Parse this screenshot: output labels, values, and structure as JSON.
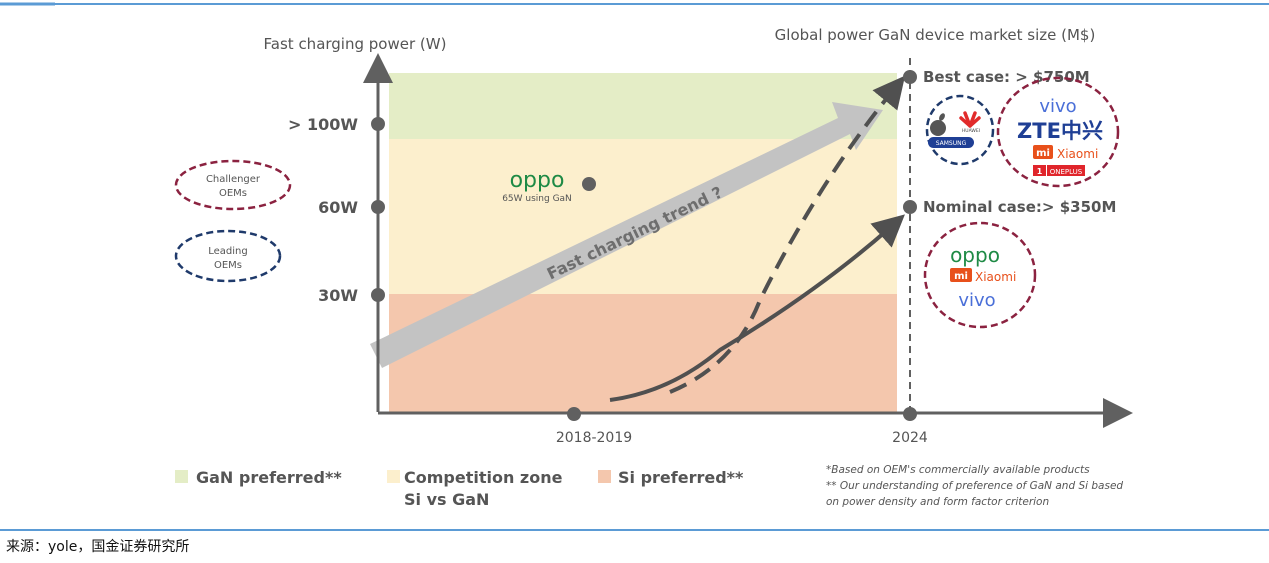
{
  "chart_data": {
    "type": "area",
    "title": "",
    "y_axis_title": "Fast charging power (W)",
    "right_axis_title": "Global power GaN device market size (M$)",
    "y_ticks": [
      "> 100W",
      "60W",
      "30W"
    ],
    "x_ticks": [
      "2018-2019",
      "2024"
    ],
    "zones": [
      {
        "name": "GaN preferred**",
        "from": "> 100W",
        "color": "#e4edc6"
      },
      {
        "name": "Competition zone Si vs GaN",
        "from": "30W",
        "to": "> 100W",
        "color": "#fcefcd"
      },
      {
        "name": "Si preferred**",
        "to": "30W",
        "color": "#f4c7ad"
      }
    ],
    "trend_label": "Fast charging trend ?",
    "oppo_point": {
      "brand": "OPPO",
      "label": "65W using GaN",
      "power_w": 65
    },
    "scenarios": [
      {
        "name": "Best case",
        "label": "Best case: > $750M",
        "value_musd": 750,
        "line": "dashed"
      },
      {
        "name": "Nominal case",
        "label": "Nominal case:> $350M",
        "value_musd": 350,
        "line": "solid"
      }
    ],
    "legend": [
      {
        "label": "GaN preferred**",
        "color": "#e4edc6"
      },
      {
        "label_line1": "Competition zone",
        "label_line2": "Si vs GaN",
        "color": "#fcefcd"
      },
      {
        "label": "Si preferred**",
        "color": "#f4c7ad"
      }
    ],
    "oem_keys": [
      {
        "label_line1": "Challenger",
        "label_line2": "OEMs",
        "color": "#8b2240"
      },
      {
        "label_line1": "Leading",
        "label_line2": "OEMs",
        "color": "#1f3a6b"
      }
    ],
    "best_case_groups": {
      "leading": [
        "HUAWEI",
        "SAMSUNG"
      ],
      "challenger": [
        "vivo",
        "ZTE中兴",
        "Xiaomi",
        "ONEPLUS"
      ]
    },
    "nominal_case_group": {
      "oppo": "oppo",
      "xiaomi": "Xiaomi",
      "vivo": "vivo"
    },
    "footnotes": [
      "*Based on OEM's commercially available products",
      "** Our understanding of preference of  GaN and Si based",
      "on power density and form factor criterion"
    ]
  },
  "source": "来源：yole，国金证券研究所",
  "colors": {
    "axis": "#606060",
    "trend_arrow": "#c3c3c3",
    "challenger": "#8b2240",
    "leading": "#1f3a6b",
    "oppo": "#1e8a45",
    "vivo": "#4a6fd8",
    "mi": "#e8501b",
    "top_rule": "#5b9bd5"
  }
}
